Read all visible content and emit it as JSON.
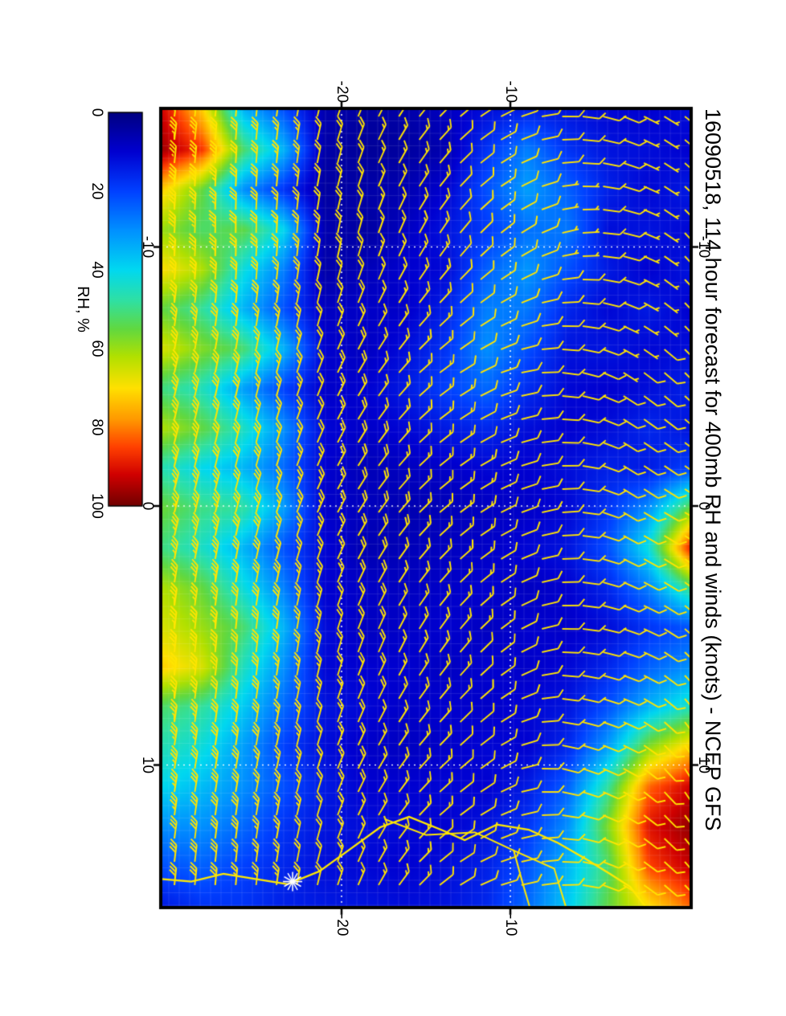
{
  "page": {
    "background_color": "#ffffff"
  },
  "chart_data": {
    "type": "heatmap",
    "kind": "filled-contour-weather-map-with-wind-barbs",
    "title": "16090518, 114 hour forecast for 400mb RH and winds (knots) - NCEP GFS",
    "orientation": "rendered-landscape-rotated-90deg-clockwise",
    "x_axis": {
      "label": "",
      "ticks": [
        -10,
        0,
        10
      ],
      "range": [
        -15.3,
        15.5
      ]
    },
    "y_axis": {
      "label": "",
      "ticks": [
        -20,
        -10
      ],
      "range": [
        -30.7,
        0.7
      ]
    },
    "graticule": {
      "x_lines": [
        -10,
        0,
        10
      ],
      "y_lines": [
        -20,
        -10
      ],
      "style": "white-dotted"
    },
    "colorbar": {
      "label": "RH, %",
      "ticks": [
        0,
        20,
        40,
        60,
        80,
        100
      ],
      "min": 0,
      "max": 100,
      "stops": [
        [
          0,
          "#000080"
        ],
        [
          10,
          "#0000d0"
        ],
        [
          20,
          "#0040ff"
        ],
        [
          30,
          "#0090ff"
        ],
        [
          40,
          "#00d8f0"
        ],
        [
          48,
          "#30e0a0"
        ],
        [
          55,
          "#60d840"
        ],
        [
          62,
          "#b0e000"
        ],
        [
          70,
          "#ffe000"
        ],
        [
          78,
          "#ff9800"
        ],
        [
          85,
          "#ff4000"
        ],
        [
          92,
          "#d00000"
        ],
        [
          100,
          "#700000"
        ]
      ]
    },
    "rh_field": {
      "units": "%",
      "rows": 14,
      "cols": 21,
      "values": [
        [
          12,
          10,
          14,
          11,
          13,
          10,
          12,
          15,
          13,
          20,
          55,
          88,
          50,
          22,
          30,
          45,
          72,
          92,
          97,
          93,
          82
        ],
        [
          10,
          12,
          11,
          13,
          10,
          14,
          11,
          12,
          16,
          14,
          30,
          42,
          28,
          18,
          24,
          35,
          58,
          82,
          90,
          85,
          70
        ],
        [
          11,
          13,
          15,
          12,
          14,
          11,
          13,
          10,
          12,
          15,
          18,
          22,
          16,
          12,
          16,
          22,
          32,
          48,
          58,
          52,
          55
        ],
        [
          13,
          18,
          24,
          27,
          22,
          16,
          13,
          11,
          10,
          12,
          11,
          13,
          10,
          9,
          11,
          13,
          16,
          24,
          30,
          35,
          38
        ],
        [
          15,
          28,
          32,
          26,
          31,
          27,
          22,
          17,
          12,
          10,
          9,
          11,
          8,
          10,
          9,
          11,
          10,
          14,
          18,
          22,
          25
        ],
        [
          12,
          18,
          22,
          19,
          24,
          28,
          30,
          25,
          16,
          11,
          8,
          9,
          10,
          8,
          10,
          9,
          11,
          10,
          13,
          15,
          16
        ],
        [
          8,
          6,
          10,
          13,
          11,
          15,
          18,
          20,
          14,
          9,
          7,
          8,
          9,
          10,
          8,
          10,
          9,
          11,
          10,
          12,
          13
        ],
        [
          5,
          4,
          6,
          8,
          10,
          9,
          12,
          14,
          11,
          8,
          6,
          7,
          8,
          9,
          10,
          9,
          8,
          10,
          11,
          10,
          12
        ],
        [
          4,
          3,
          5,
          4,
          7,
          9,
          8,
          10,
          9,
          7,
          8,
          6,
          9,
          8,
          10,
          11,
          9,
          10,
          12,
          11,
          13
        ],
        [
          6,
          5,
          4,
          6,
          5,
          8,
          10,
          9,
          11,
          10,
          9,
          11,
          10,
          12,
          11,
          13,
          12,
          14,
          13,
          12,
          14
        ],
        [
          22,
          35,
          18,
          40,
          28,
          22,
          35,
          20,
          30,
          25,
          32,
          22,
          28,
          35,
          30,
          25,
          20,
          22,
          18,
          16,
          15
        ],
        [
          35,
          52,
          30,
          55,
          42,
          35,
          52,
          32,
          45,
          35,
          48,
          35,
          42,
          52,
          45,
          38,
          32,
          30,
          25,
          20,
          18
        ],
        [
          72,
          86,
          55,
          52,
          62,
          48,
          58,
          45,
          55,
          40,
          50,
          44,
          55,
          60,
          66,
          48,
          42,
          36,
          30,
          24,
          18
        ],
        [
          92,
          96,
          72,
          60,
          70,
          55,
          66,
          50,
          62,
          46,
          56,
          50,
          62,
          66,
          72,
          52,
          46,
          40,
          30,
          22,
          14
        ]
      ]
    },
    "wind_field": {
      "units": "knots",
      "rows": 9,
      "cols": 7,
      "uv": [
        [
          [
            -4,
            -5
          ],
          [
            -5,
            -4
          ],
          [
            -6,
            -6
          ],
          [
            -4,
            -7
          ],
          [
            -5,
            -5
          ],
          [
            -7,
            -4
          ],
          [
            -6,
            -6
          ]
        ],
        [
          [
            -3,
            -7
          ],
          [
            -2,
            -8
          ],
          [
            -4,
            -6
          ],
          [
            -5,
            -8
          ],
          [
            -3,
            -9
          ],
          [
            -4,
            -7
          ],
          [
            -5,
            -8
          ]
        ],
        [
          [
            0,
            -8
          ],
          [
            2,
            -7
          ],
          [
            -1,
            -9
          ],
          [
            1,
            -10
          ],
          [
            0,
            -8
          ],
          [
            -2,
            -8
          ],
          [
            1,
            -9
          ]
        ],
        [
          [
            5,
            -9
          ],
          [
            7,
            -8
          ],
          [
            4,
            -10
          ],
          [
            6,
            -11
          ],
          [
            8,
            -9
          ],
          [
            5,
            -8
          ],
          [
            3,
            -10
          ]
        ],
        [
          [
            10,
            -9
          ],
          [
            12,
            -7
          ],
          [
            9,
            -11
          ],
          [
            11,
            -12
          ],
          [
            13,
            -8
          ],
          [
            10,
            -10
          ],
          [
            8,
            -9
          ]
        ],
        [
          [
            16,
            -7
          ],
          [
            18,
            -5
          ],
          [
            15,
            -9
          ],
          [
            17,
            -11
          ],
          [
            19,
            -7
          ],
          [
            16,
            -8
          ],
          [
            14,
            -6
          ]
        ],
        [
          [
            23,
            -4
          ],
          [
            25,
            -2
          ],
          [
            22,
            -7
          ],
          [
            24,
            -9
          ],
          [
            26,
            -4
          ],
          [
            23,
            -6
          ],
          [
            21,
            -3
          ]
        ],
        [
          [
            30,
            -3
          ],
          [
            33,
            0
          ],
          [
            28,
            -6
          ],
          [
            31,
            -8
          ],
          [
            33,
            -3
          ],
          [
            29,
            -5
          ],
          [
            27,
            -2
          ]
        ],
        [
          [
            38,
            -6
          ],
          [
            40,
            -2
          ],
          [
            35,
            -8
          ],
          [
            37,
            -10
          ],
          [
            38,
            -4
          ],
          [
            34,
            -6
          ],
          [
            32,
            -3
          ]
        ]
      ]
    },
    "barb_color": "#ffe400",
    "map_overlay": {
      "line_color": "#ffe800",
      "coastline": [
        [
          14.4,
          -30.7
        ],
        [
          14.5,
          -28.9
        ],
        [
          14.2,
          -27.0
        ],
        [
          14.4,
          -25.1
        ],
        [
          14.6,
          -23.2
        ],
        [
          14.1,
          -21.3
        ],
        [
          13.3,
          -19.6
        ],
        [
          12.4,
          -17.7
        ],
        [
          12.0,
          -16.0
        ],
        [
          12.5,
          -14.1
        ],
        [
          12.9,
          -12.7
        ],
        [
          12.3,
          -10.8
        ],
        [
          12.5,
          -8.9
        ],
        [
          13.0,
          -7.2
        ],
        [
          13.6,
          -5.6
        ],
        [
          14.2,
          -4.1
        ],
        [
          14.7,
          -2.9
        ],
        [
          15.3,
          -2.2
        ],
        [
          15.6,
          -1.8
        ]
      ],
      "rivers": [
        [
          [
            12.1,
            -17.4
          ],
          [
            12.7,
            -15.0
          ],
          [
            12.6,
            -12.1
          ],
          [
            13.3,
            -9.8
          ],
          [
            14.0,
            -7.4
          ],
          [
            15.5,
            -6.7
          ]
        ],
        [
          [
            13.3,
            -9.8
          ],
          [
            14.5,
            -9.3
          ],
          [
            15.6,
            -8.8
          ]
        ]
      ],
      "marker": {
        "lon": 14.5,
        "lat": -22.9,
        "symbol": "white-star",
        "color": "#ffffff"
      }
    }
  }
}
